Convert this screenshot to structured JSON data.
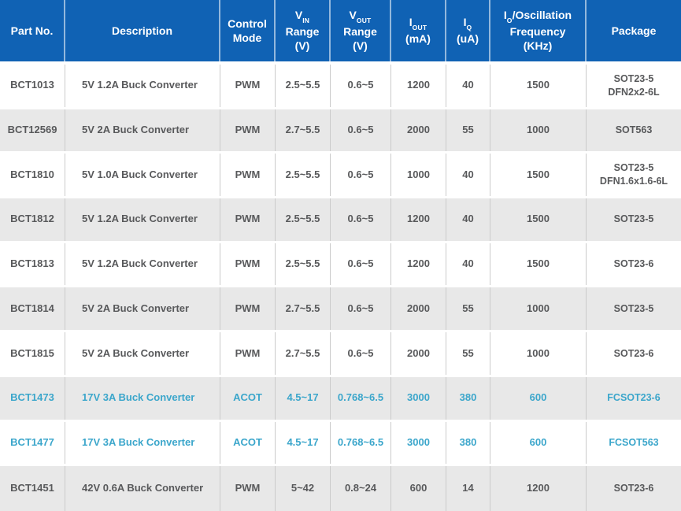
{
  "colors": {
    "header_bg": "#1062b4",
    "header_text": "#ffffff",
    "text": "#58595b",
    "accent": "#3ba6cb",
    "alt_bg": "#e8e8e8",
    "line": "#cbcbcb"
  },
  "chart_data": {
    "type": "table",
    "columns": [
      {
        "id": "part",
        "label": "Part No."
      },
      {
        "id": "desc",
        "label": "Description"
      },
      {
        "id": "mode",
        "label": "Control\nMode"
      },
      {
        "id": "vin",
        "sym": "V",
        "sub": "IN",
        "rest": "Range\n(V)"
      },
      {
        "id": "vout",
        "sym": "V",
        "sub": "OUT",
        "rest": "Range\n(V)"
      },
      {
        "id": "iout",
        "sym": "I",
        "sub": "OUT",
        "rest": "(mA)"
      },
      {
        "id": "iq",
        "sym": "I",
        "sub": "Q",
        "rest": "(uA)"
      },
      {
        "id": "freq",
        "sym": "I",
        "sub": "O",
        "tail": "/Oscillation",
        "rest": "Frequency\n(KHz)"
      },
      {
        "id": "pkg",
        "label": "Package"
      }
    ],
    "rows": [
      {
        "part": "BCT1013",
        "desc": "5V 1.2A Buck Converter",
        "mode": "PWM",
        "vin": "2.5~5.5",
        "vout": "0.6~5",
        "iout": "1200",
        "iq": "40",
        "freq": "1500",
        "pkg": "SOT23-5\nDFN2x2-6L",
        "highlight": false
      },
      {
        "part": "BCT12569",
        "desc": "5V 2A Buck Converter",
        "mode": "PWM",
        "vin": "2.7~5.5",
        "vout": "0.6~5",
        "iout": "2000",
        "iq": "55",
        "freq": "1000",
        "pkg": "SOT563",
        "highlight": false
      },
      {
        "part": "BCT1810",
        "desc": "5V 1.0A Buck Converter",
        "mode": "PWM",
        "vin": "2.5~5.5",
        "vout": "0.6~5",
        "iout": "1000",
        "iq": "40",
        "freq": "1500",
        "pkg": "SOT23-5\nDFN1.6x1.6-6L",
        "highlight": false
      },
      {
        "part": "BCT1812",
        "desc": "5V 1.2A Buck Converter",
        "mode": "PWM",
        "vin": "2.5~5.5",
        "vout": "0.6~5",
        "iout": "1200",
        "iq": "40",
        "freq": "1500",
        "pkg": "SOT23-5",
        "highlight": false
      },
      {
        "part": "BCT1813",
        "desc": "5V 1.2A Buck Converter",
        "mode": "PWM",
        "vin": "2.5~5.5",
        "vout": "0.6~5",
        "iout": "1200",
        "iq": "40",
        "freq": "1500",
        "pkg": "SOT23-6",
        "highlight": false
      },
      {
        "part": "BCT1814",
        "desc": "5V 2A Buck Converter",
        "mode": "PWM",
        "vin": "2.7~5.5",
        "vout": "0.6~5",
        "iout": "2000",
        "iq": "55",
        "freq": "1000",
        "pkg": "SOT23-5",
        "highlight": false
      },
      {
        "part": "BCT1815",
        "desc": "5V 2A Buck Converter",
        "mode": "PWM",
        "vin": "2.7~5.5",
        "vout": "0.6~5",
        "iout": "2000",
        "iq": "55",
        "freq": "1000",
        "pkg": "SOT23-6",
        "highlight": false
      },
      {
        "part": "BCT1473",
        "desc": "17V 3A Buck Converter",
        "mode": "ACOT",
        "vin": "4.5~17",
        "vout": "0.768~6.5",
        "iout": "3000",
        "iq": "380",
        "freq": "600",
        "pkg": "FCSOT23-6",
        "highlight": true
      },
      {
        "part": "BCT1477",
        "desc": "17V 3A Buck Converter",
        "mode": "ACOT",
        "vin": "4.5~17",
        "vout": "0.768~6.5",
        "iout": "3000",
        "iq": "380",
        "freq": "600",
        "pkg": "FCSOT563",
        "highlight": true
      },
      {
        "part": "BCT1451",
        "desc": "42V 0.6A Buck Converter",
        "mode": "PWM",
        "vin": "5~42",
        "vout": "0.8~24",
        "iout": "600",
        "iq": "14",
        "freq": "1200",
        "pkg": "SOT23-6",
        "highlight": false
      }
    ]
  }
}
